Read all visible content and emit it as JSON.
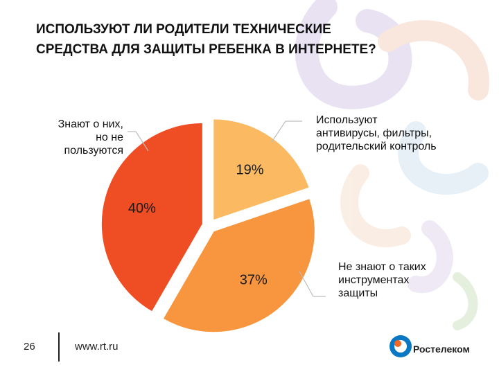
{
  "title": "ИСПОЛЬЗУЮТ ЛИ РОДИТЕЛИ ТЕХНИЧЕСКИЕ\nСРЕДСТВА ДЛЯ ЗАЩИТЫ РЕБЕНКА В ИНТЕРНЕТЕ?",
  "labels": {
    "know_not_use": "Знают о них,\nно не\nпользуются",
    "use": "Используют\nантивирусы, фильтры,\nродительский контроль",
    "dont_know": "Не знают о таких\nинструментах\nзащиты"
  },
  "footer": {
    "page_number": "26",
    "url": "www.rt.ru",
    "logo_text": "Ростелеком"
  },
  "colors": {
    "use": "#FBB962",
    "dont_know": "#F7963E",
    "know_not_use": "#EF4D24",
    "brand_blue": "#0A77C5",
    "brand_orange": "#F26722"
  },
  "chart_data": {
    "type": "pie",
    "title": "ИСПОЛЬЗУЮТ ЛИ РОДИТЕЛИ ТЕХНИЧЕСКИЕ СРЕДСТВА ДЛЯ ЗАЩИТЫ РЕБЕНКА В ИНТЕРНЕТЕ?",
    "slices": [
      {
        "name": "Используют антивирусы, фильтры, родительский контроль",
        "value": 19,
        "label": "19%",
        "color": "#FBB962"
      },
      {
        "name": "Не знают о таких инструментах защиты",
        "value": 37,
        "label": "37%",
        "color": "#F7963E"
      },
      {
        "name": "Знают о них, но не пользуются",
        "value": 40,
        "label": "40%",
        "color": "#EF4D24"
      }
    ]
  }
}
